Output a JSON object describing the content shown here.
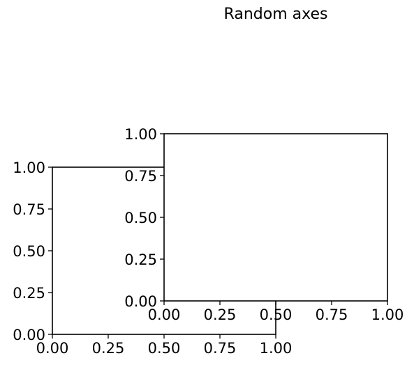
{
  "chart_data": {
    "type": "scatter",
    "title": "Random axes",
    "axes": [
      {
        "xlim": [
          0,
          1
        ],
        "ylim": [
          0,
          1
        ],
        "xticks": [
          0,
          0.25,
          0.5,
          0.75,
          1
        ],
        "yticks": [
          0,
          0.25,
          0.5,
          0.75,
          1
        ],
        "xtick_labels": [
          "0.00",
          "0.25",
          "0.50",
          "0.75",
          "1.00"
        ],
        "ytick_labels": [
          "0.00",
          "0.25",
          "0.50",
          "0.75",
          "1.00"
        ],
        "grid": false,
        "series": []
      },
      {
        "xlim": [
          0,
          1
        ],
        "ylim": [
          0,
          1
        ],
        "xticks": [
          0,
          0.25,
          0.5,
          0.75,
          1
        ],
        "yticks": [
          0,
          0.25,
          0.5,
          0.75,
          1
        ],
        "xtick_labels": [
          "0.00",
          "0.25",
          "0.50",
          "0.75",
          "1.00"
        ],
        "ytick_labels": [
          "0.00",
          "0.25",
          "0.50",
          "0.75",
          "1.00"
        ],
        "grid": false,
        "series": []
      }
    ]
  }
}
